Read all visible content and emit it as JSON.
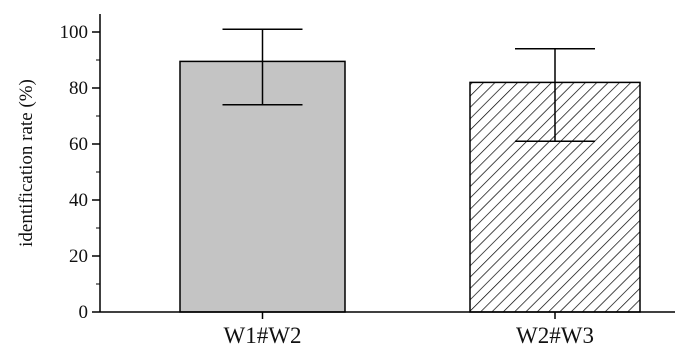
{
  "chart_data": {
    "type": "bar",
    "categories": [
      "W1#W2",
      "W2#W3"
    ],
    "values": [
      89.5,
      82
    ],
    "error_upper": [
      101,
      94
    ],
    "error_lower": [
      74,
      61
    ],
    "ylabel": "identification rate (%)",
    "xlabel": "",
    "ylim": [
      0,
      100
    ],
    "yticks": [
      0,
      20,
      40,
      60,
      80,
      100
    ],
    "grid": false,
    "bar_styles": [
      {
        "fill": "#c4c4c4",
        "pattern": "solid"
      },
      {
        "fill": "#ffffff",
        "pattern": "diagonal-hatch"
      }
    ]
  }
}
